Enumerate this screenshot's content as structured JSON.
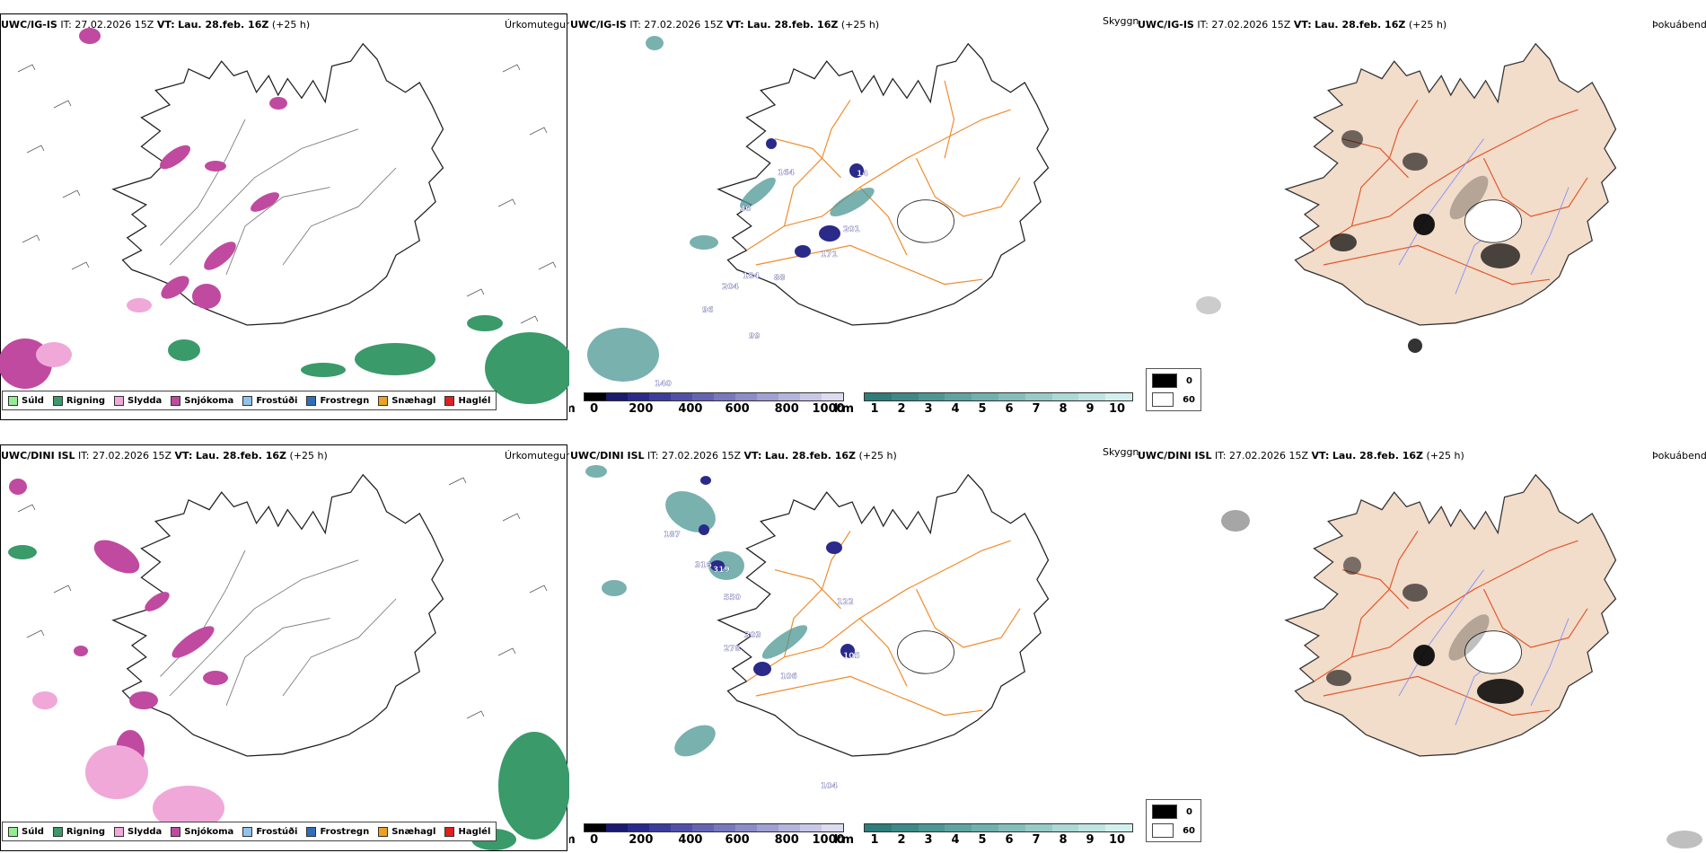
{
  "rows": [
    {
      "model": "UWC/IG-IS",
      "it_label": "IT:",
      "it_value": "27.02.2026 15Z",
      "vt_label": "VT:",
      "vt_value": "Lau. 28.feb. 16Z",
      "lead": "(+25 h)",
      "precip_title": "Úrkomutegund",
      "vis_title": "Skyggni",
      "fog_title": "Þokuábendi",
      "height_labels": [
        "164",
        "14",
        "201",
        "171",
        "204",
        "184",
        "88",
        "30",
        "96",
        "99",
        "140"
      ]
    },
    {
      "model": "UWC/DINI ISL",
      "it_label": "IT:",
      "it_value": "27.02.2026 15Z",
      "vt_label": "VT:",
      "vt_value": "Lau. 28.feb. 16Z",
      "lead": "(+25 h)",
      "precip_title": "Úrkomutegund",
      "vis_title": "Skyggni",
      "fog_title": "Þokuábendi",
      "height_labels": [
        "187",
        "316",
        "319",
        "550",
        "303",
        "278",
        "106",
        "122",
        "105",
        "104"
      ]
    }
  ],
  "precip_legend": [
    {
      "label": "Súld",
      "color": "#90ee90"
    },
    {
      "label": "Rigning",
      "color": "#3a9a6a"
    },
    {
      "label": "Slydda",
      "color": "#f0a8d8"
    },
    {
      "label": "Snjókoma",
      "color": "#c04aa0"
    },
    {
      "label": "Frostúði",
      "color": "#8ec3ee"
    },
    {
      "label": "Frostregn",
      "color": "#2f6fb8"
    },
    {
      "label": "Snæhagl",
      "color": "#f0a020"
    },
    {
      "label": "Haglél",
      "color": "#e02020"
    }
  ],
  "height_scale": {
    "unit": "m",
    "ticks": [
      "0",
      "200",
      "400",
      "600",
      "800",
      "1000"
    ],
    "colors": [
      "#000000",
      "#1a1a6e",
      "#2a2a8a",
      "#3c3c9c",
      "#5050aa",
      "#6464b4",
      "#7878be",
      "#8c8cc8",
      "#a0a0d2",
      "#b4b4dc",
      "#c8c8e6",
      "#dcdcf0"
    ]
  },
  "vis_scale": {
    "unit": "km",
    "ticks": [
      "1",
      "2",
      "3",
      "4",
      "5",
      "6",
      "7",
      "8",
      "9",
      "10"
    ],
    "colors": [
      "#2e7d7a",
      "#3c8a87",
      "#4c9794",
      "#5ea4a1",
      "#70b1ae",
      "#84bebb",
      "#98cbc8",
      "#acd8d5",
      "#c0e4e2",
      "#d4f0ee"
    ]
  },
  "fog_legend": [
    {
      "value": "0",
      "color": "#000000"
    },
    {
      "value": "60",
      "color": "#ffffff"
    }
  ],
  "colors": {
    "snow": "#c04aa0",
    "sleet": "#f0a8d8",
    "rain": "#3a9a6a",
    "roads": "#f08a2a",
    "land_fill": "#f2dcca",
    "rivers": "#7a8cff"
  }
}
